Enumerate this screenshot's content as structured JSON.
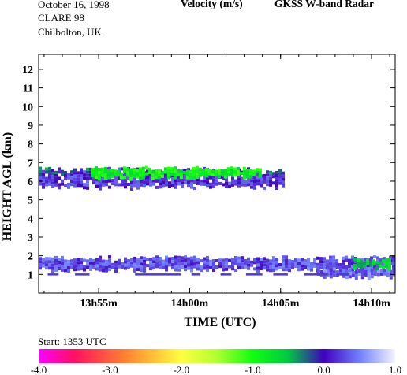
{
  "header": {
    "date": "October  16, 1998",
    "campaign": "CLARE 98",
    "location": "Chilbolton, UK",
    "title_left": "Velocity (m/s)",
    "title_right": "GKSS  W-band Radar"
  },
  "footer": {
    "start": "Start: 1353 UTC"
  },
  "chart_data": {
    "type": "heatmap",
    "xlabel": "TIME (UTC)",
    "ylabel": "HEIGHT AGL (km)",
    "x_range_min": [
      -1.3,
      18.3
    ],
    "x_ticks": [
      {
        "v": 2,
        "label": "13h55m"
      },
      {
        "v": 7,
        "label": "14h00m"
      },
      {
        "v": 12,
        "label": "14h05m"
      },
      {
        "v": 17,
        "label": "14h10m"
      }
    ],
    "ylim": [
      0,
      12.8
    ],
    "y_ticks": [
      1,
      2,
      3,
      4,
      5,
      6,
      7,
      8,
      9,
      10,
      11,
      12
    ],
    "colorbar": {
      "min": -4.0,
      "max": 1.0,
      "ticks": [
        "-4.0",
        "-3.0",
        "-2.0",
        "-1.0",
        "0.0",
        "1.0"
      ],
      "stops": [
        {
          "v": -4.0,
          "color": "#ff00ff"
        },
        {
          "v": -3.5,
          "color": "#ff1060"
        },
        {
          "v": -2.8,
          "color": "#ff8030"
        },
        {
          "v": -2.0,
          "color": "#ffff40"
        },
        {
          "v": -1.5,
          "color": "#b0ff30"
        },
        {
          "v": -1.0,
          "color": "#10ff10"
        },
        {
          "v": -0.5,
          "color": "#00c840"
        },
        {
          "v": 0.0,
          "color": "#4000c0"
        },
        {
          "v": 0.5,
          "color": "#7080ff"
        },
        {
          "v": 1.0,
          "color": "#f4f4ff"
        }
      ]
    },
    "layers": [
      {
        "t0": -1.3,
        "t1": 12.1,
        "h0": 5.75,
        "h1": 6.65,
        "vel": 0.2,
        "top_color": "#4000c0"
      },
      {
        "t0": 1.6,
        "t1": 10.8,
        "h0": 6.3,
        "h1": 6.7,
        "vel": -0.9,
        "top_color": "#10ff10"
      },
      {
        "t0": -1.3,
        "t1": 18.3,
        "h0": 1.3,
        "h1": 1.9,
        "vel": 0.3,
        "top_color": "#4000c0"
      },
      {
        "t0": 14.0,
        "t1": 18.3,
        "h0": 0.9,
        "h1": 1.3,
        "vel": 0.4,
        "top_color": "#4000c0"
      },
      {
        "t0": 16.0,
        "t1": 18.0,
        "h0": 1.4,
        "h1": 1.8,
        "vel": -0.6,
        "top_color": "#00c840"
      }
    ]
  }
}
